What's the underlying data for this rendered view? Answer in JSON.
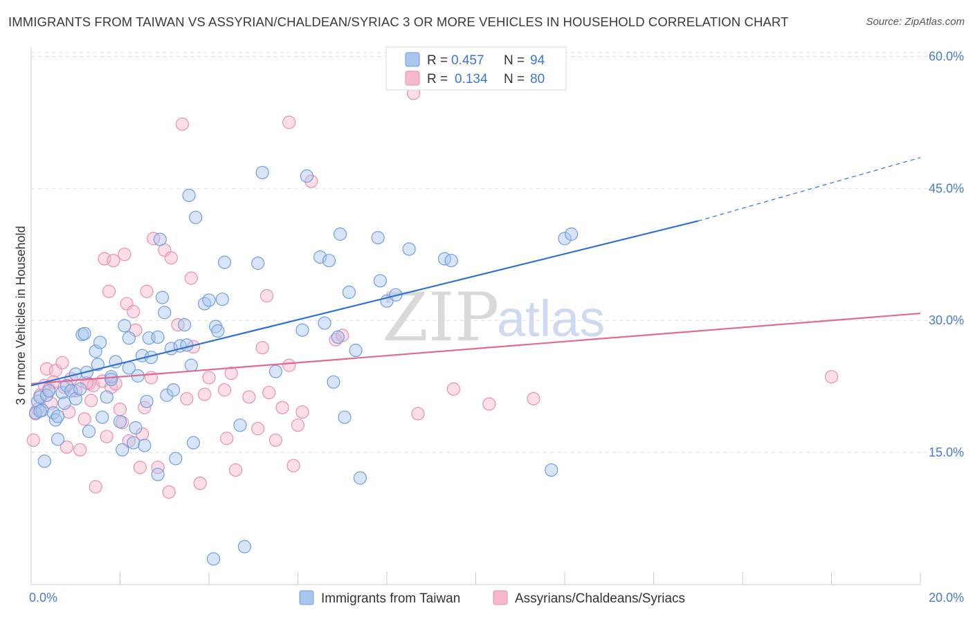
{
  "title": "IMMIGRANTS FROM TAIWAN VS ASSYRIAN/CHALDEAN/SYRIAC 3 OR MORE VEHICLES IN HOUSEHOLD CORRELATION CHART",
  "source": "Source: ZipAtlas.com",
  "watermark": {
    "zip": "ZIP",
    "atlas": "atlas"
  },
  "colors": {
    "blue_fill": "#a9c6ee",
    "blue_stroke": "#6f9ee0",
    "blue_line": "#2f72cf",
    "pink_fill": "#f6b9cc",
    "pink_stroke": "#ea8fac",
    "pink_line": "#e06a95",
    "axis_label": "#4a7cc9",
    "grid": "#dddddd"
  },
  "legend": {
    "rows": [
      {
        "r_label": "R =",
        "r_value": "0.457",
        "n_label": "N =",
        "n_value": "94",
        "color": "blue"
      },
      {
        "r_label": "R =",
        "r_value": "0.134",
        "n_label": "N =",
        "n_value": "80",
        "color": "pink"
      }
    ]
  },
  "bottom_legend": [
    {
      "label": "Immigrants from Taiwan",
      "color": "blue"
    },
    {
      "label": "Assyrians/Chaldeans/Syriacs",
      "color": "pink"
    }
  ],
  "chart_data": {
    "type": "scatter",
    "ylabel": "3 or more Vehicles in Household",
    "xlabel": "",
    "x_tick_labels": [
      "0.0%",
      "20.0%"
    ],
    "y_tick_labels": [
      "15.0%",
      "30.0%",
      "45.0%",
      "60.0%"
    ],
    "y_ticks": [
      15,
      30,
      45,
      60
    ],
    "xlim": [
      0,
      20
    ],
    "ylim": [
      0,
      62
    ],
    "grid": "horizontal dashed",
    "legend_position": "top-center",
    "series": [
      {
        "name": "Immigrants from Taiwan",
        "color": "blue",
        "trend": {
          "x0": 0,
          "y0": 22.6,
          "x1": 15.0,
          "y1": 41.3,
          "dashed_to_x": 20.0,
          "dashed_to_y": 48.5
        },
        "points": [
          [
            0.1,
            19.5
          ],
          [
            0.15,
            20.8
          ],
          [
            0.2,
            21.3
          ],
          [
            0.25,
            19.8
          ],
          [
            0.3,
            14.0
          ],
          [
            0.35,
            21.5
          ],
          [
            0.4,
            22.0
          ],
          [
            0.5,
            19.5
          ],
          [
            0.55,
            18.7
          ],
          [
            0.6,
            16.5
          ],
          [
            0.7,
            21.8
          ],
          [
            0.75,
            20.6
          ],
          [
            0.8,
            22.6
          ],
          [
            0.9,
            22.0
          ],
          [
            1.0,
            21.1
          ],
          [
            1.1,
            22.2
          ],
          [
            1.15,
            28.4
          ],
          [
            1.2,
            28.5
          ],
          [
            1.25,
            24.1
          ],
          [
            1.3,
            17.4
          ],
          [
            1.45,
            26.5
          ],
          [
            1.5,
            25.0
          ],
          [
            1.55,
            27.5
          ],
          [
            1.6,
            19.0
          ],
          [
            1.7,
            21.3
          ],
          [
            1.8,
            23.6
          ],
          [
            1.8,
            23.3
          ],
          [
            1.9,
            25.3
          ],
          [
            2.0,
            18.5
          ],
          [
            2.05,
            15.3
          ],
          [
            2.1,
            29.4
          ],
          [
            2.2,
            24.6
          ],
          [
            2.3,
            16.1
          ],
          [
            2.35,
            17.8
          ],
          [
            2.4,
            23.7
          ],
          [
            2.5,
            26.0
          ],
          [
            2.55,
            15.8
          ],
          [
            2.6,
            20.8
          ],
          [
            2.65,
            28.0
          ],
          [
            2.7,
            25.8
          ],
          [
            2.85,
            28.1
          ],
          [
            2.85,
            12.5
          ],
          [
            2.9,
            39.2
          ],
          [
            2.95,
            32.6
          ],
          [
            3.05,
            21.5
          ],
          [
            3.15,
            26.8
          ],
          [
            3.2,
            22.1
          ],
          [
            3.25,
            14.3
          ],
          [
            3.35,
            27.1
          ],
          [
            3.45,
            29.5
          ],
          [
            3.5,
            27.2
          ],
          [
            3.55,
            44.2
          ],
          [
            3.6,
            24.9
          ],
          [
            3.65,
            16.1
          ],
          [
            3.7,
            41.7
          ],
          [
            3.9,
            31.9
          ],
          [
            4.0,
            32.3
          ],
          [
            4.1,
            2.9
          ],
          [
            4.15,
            29.3
          ],
          [
            4.2,
            28.8
          ],
          [
            4.3,
            32.4
          ],
          [
            4.35,
            36.6
          ],
          [
            4.7,
            18.1
          ],
          [
            4.8,
            4.3
          ],
          [
            5.1,
            36.5
          ],
          [
            5.2,
            46.8
          ],
          [
            5.5,
            24.2
          ],
          [
            6.1,
            28.9
          ],
          [
            6.2,
            46.4
          ],
          [
            6.6,
            29.7
          ],
          [
            6.5,
            37.2
          ],
          [
            6.7,
            36.8
          ],
          [
            6.8,
            23.0
          ],
          [
            6.9,
            28.1
          ],
          [
            6.95,
            39.8
          ],
          [
            7.05,
            19.0
          ],
          [
            7.15,
            33.2
          ],
          [
            7.3,
            26.6
          ],
          [
            7.4,
            12.1
          ],
          [
            7.8,
            39.4
          ],
          [
            7.85,
            34.5
          ],
          [
            8.0,
            32.2
          ],
          [
            8.2,
            32.9
          ],
          [
            8.5,
            38.1
          ],
          [
            9.3,
            37.0
          ],
          [
            9.45,
            36.8
          ],
          [
            11.7,
            13.0
          ],
          [
            12.0,
            39.3
          ],
          [
            12.15,
            39.8
          ],
          [
            0.2,
            19.7
          ],
          [
            0.6,
            19.1
          ],
          [
            1.0,
            23.9
          ],
          [
            2.2,
            28.0
          ],
          [
            3.0,
            30.9
          ]
        ]
      },
      {
        "name": "Assyrians/Chaldeans/Syriacs",
        "color": "pink",
        "trend": {
          "x0": 0,
          "y0": 22.8,
          "x1": 20.0,
          "y1": 30.8
        },
        "points": [
          [
            0.05,
            16.4
          ],
          [
            0.1,
            19.4
          ],
          [
            0.2,
            21.5
          ],
          [
            0.3,
            22.6
          ],
          [
            0.35,
            24.5
          ],
          [
            0.4,
            22.2
          ],
          [
            0.45,
            20.6
          ],
          [
            0.55,
            24.3
          ],
          [
            0.7,
            25.2
          ],
          [
            0.75,
            22.4
          ],
          [
            0.8,
            15.6
          ],
          [
            0.85,
            19.6
          ],
          [
            0.9,
            23.4
          ],
          [
            1.0,
            22.0
          ],
          [
            1.1,
            15.3
          ],
          [
            1.2,
            18.8
          ],
          [
            1.3,
            22.8
          ],
          [
            1.35,
            20.9
          ],
          [
            1.4,
            22.6
          ],
          [
            1.45,
            11.1
          ],
          [
            1.6,
            23.1
          ],
          [
            1.65,
            37.0
          ],
          [
            1.7,
            16.8
          ],
          [
            1.75,
            33.3
          ],
          [
            1.8,
            22.4
          ],
          [
            1.85,
            36.8
          ],
          [
            1.9,
            22.8
          ],
          [
            2.0,
            19.9
          ],
          [
            2.05,
            18.4
          ],
          [
            2.1,
            37.5
          ],
          [
            2.15,
            31.9
          ],
          [
            2.2,
            16.3
          ],
          [
            2.3,
            31.0
          ],
          [
            2.45,
            13.3
          ],
          [
            2.5,
            17.1
          ],
          [
            2.55,
            20.1
          ],
          [
            2.6,
            33.3
          ],
          [
            2.7,
            23.5
          ],
          [
            2.75,
            39.3
          ],
          [
            2.85,
            13.3
          ],
          [
            3.0,
            38.0
          ],
          [
            3.1,
            10.5
          ],
          [
            3.15,
            37.1
          ],
          [
            3.3,
            29.5
          ],
          [
            3.4,
            52.3
          ],
          [
            3.5,
            21.1
          ],
          [
            3.6,
            34.8
          ],
          [
            3.8,
            11.5
          ],
          [
            3.9,
            21.6
          ],
          [
            4.0,
            23.5
          ],
          [
            4.35,
            22.1
          ],
          [
            4.4,
            16.6
          ],
          [
            4.5,
            24.0
          ],
          [
            4.6,
            13.0
          ],
          [
            4.9,
            21.3
          ],
          [
            5.1,
            17.7
          ],
          [
            5.2,
            26.9
          ],
          [
            5.3,
            32.8
          ],
          [
            5.35,
            21.8
          ],
          [
            5.5,
            16.4
          ],
          [
            5.65,
            20.1
          ],
          [
            5.8,
            52.5
          ],
          [
            5.9,
            13.5
          ],
          [
            6.0,
            18.1
          ],
          [
            6.1,
            19.6
          ],
          [
            6.3,
            45.8
          ],
          [
            6.85,
            27.8
          ],
          [
            7.0,
            28.3
          ],
          [
            8.6,
            55.8
          ],
          [
            8.7,
            19.4
          ],
          [
            9.5,
            22.2
          ],
          [
            10.3,
            20.5
          ],
          [
            11.3,
            21.1
          ],
          [
            18.0,
            23.6
          ],
          [
            0.15,
            19.9
          ],
          [
            0.5,
            23.0
          ],
          [
            1.25,
            22.9
          ],
          [
            2.35,
            28.9
          ],
          [
            3.65,
            27.0
          ],
          [
            5.8,
            24.9
          ]
        ]
      }
    ]
  }
}
